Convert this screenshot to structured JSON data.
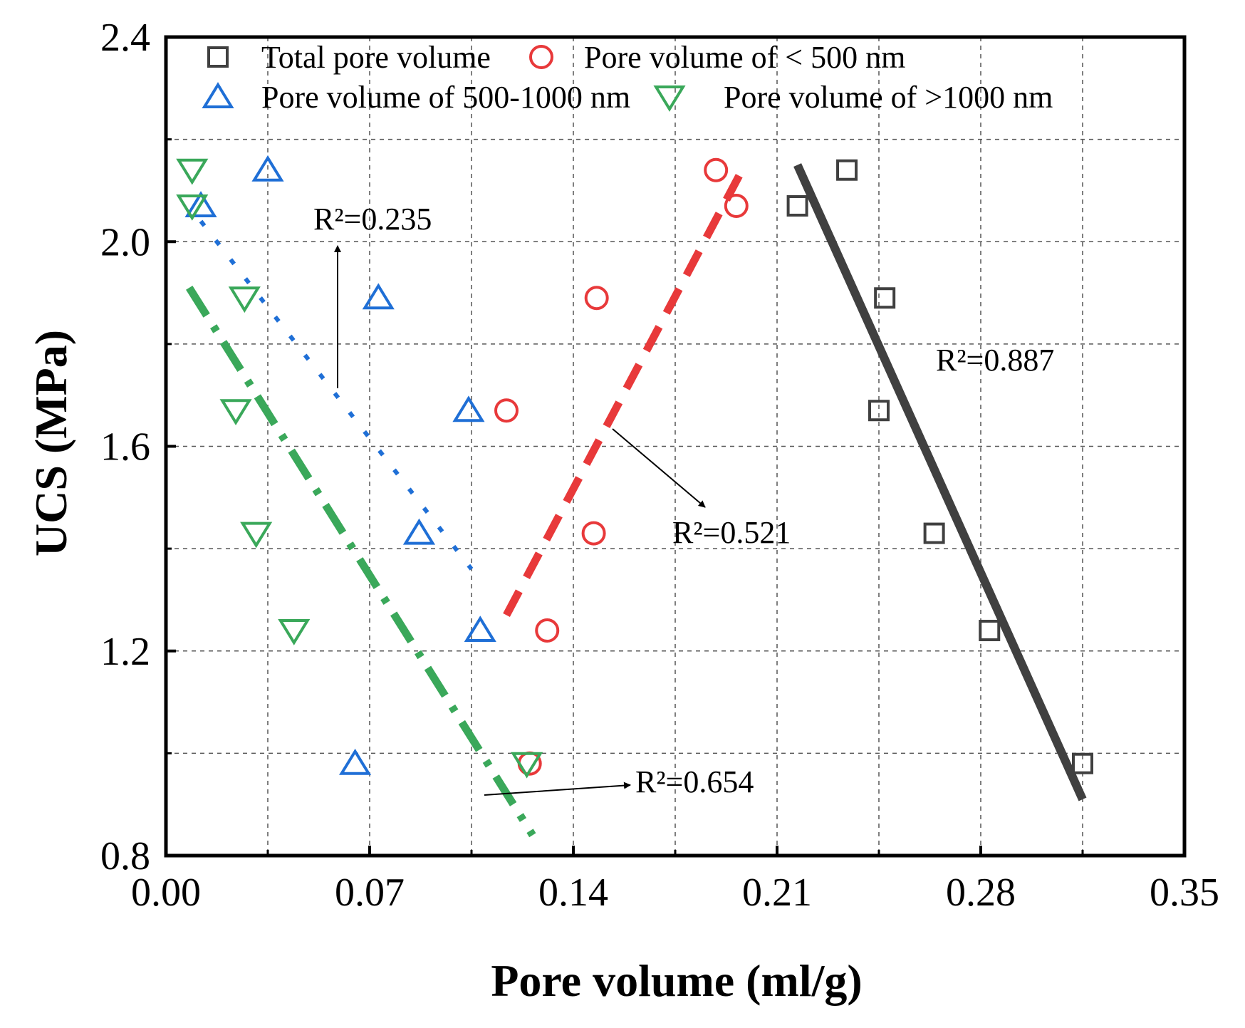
{
  "chart_data": {
    "type": "scatter",
    "title": "",
    "xlabel": "Pore volume (ml/g)",
    "ylabel": "UCS (MPa)",
    "xlim": [
      0.0,
      0.35
    ],
    "ylim": [
      0.8,
      2.4
    ],
    "xticks": [
      "0.00",
      "0.07",
      "0.14",
      "0.21",
      "0.28",
      "0.35"
    ],
    "yticks": [
      "0.8",
      "1.2",
      "1.6",
      "2.0",
      "2.4"
    ],
    "grid": true,
    "legend_position": "top",
    "series": [
      {
        "name": "Total pore volume",
        "marker": "square",
        "color": "#404040",
        "x": [
          0.217,
          0.234,
          0.247,
          0.245,
          0.264,
          0.283,
          0.315
        ],
        "y": [
          2.07,
          2.14,
          1.89,
          1.67,
          1.43,
          1.24,
          0.98
        ],
        "fit": {
          "x": [
            0.217,
            0.315
          ],
          "y": [
            2.15,
            0.91
          ],
          "style": "solid"
        },
        "r2": "R²=0.887"
      },
      {
        "name": "Pore volume of < 500 nm",
        "marker": "circle",
        "color": "#e8393a",
        "x": [
          0.189,
          0.196,
          0.148,
          0.117,
          0.147,
          0.131,
          0.125
        ],
        "y": [
          2.14,
          2.07,
          1.89,
          1.67,
          1.43,
          1.24,
          0.98
        ],
        "fit": {
          "x": [
            0.117,
            0.198
          ],
          "y": [
            1.27,
            2.14
          ],
          "style": "dash"
        },
        "r2": "R²=0.521"
      },
      {
        "name": "Pore volume of 500-1000 nm",
        "marker": "triangle-up",
        "color": "#1f6fd6",
        "x": [
          0.012,
          0.035,
          0.073,
          0.104,
          0.087,
          0.108,
          0.065
        ],
        "y": [
          2.07,
          2.14,
          1.89,
          1.67,
          1.43,
          1.24,
          0.98
        ],
        "fit": {
          "x": [
            0.012,
            0.105
          ],
          "y": [
            2.04,
            1.36
          ],
          "style": "dot"
        },
        "r2": "R²=0.235"
      },
      {
        "name": "Pore volume of >1000 nm",
        "marker": "triangle-down",
        "color": "#3aa85a",
        "x": [
          0.009,
          0.009,
          0.027,
          0.024,
          0.031,
          0.044,
          0.124
        ],
        "y": [
          2.14,
          2.07,
          1.89,
          1.67,
          1.43,
          1.24,
          0.98
        ],
        "fit": {
          "x": [
            0.008,
            0.126
          ],
          "y": [
            1.91,
            0.84
          ],
          "style": "dashdot"
        },
        "r2": "R²=0.654"
      }
    ]
  }
}
